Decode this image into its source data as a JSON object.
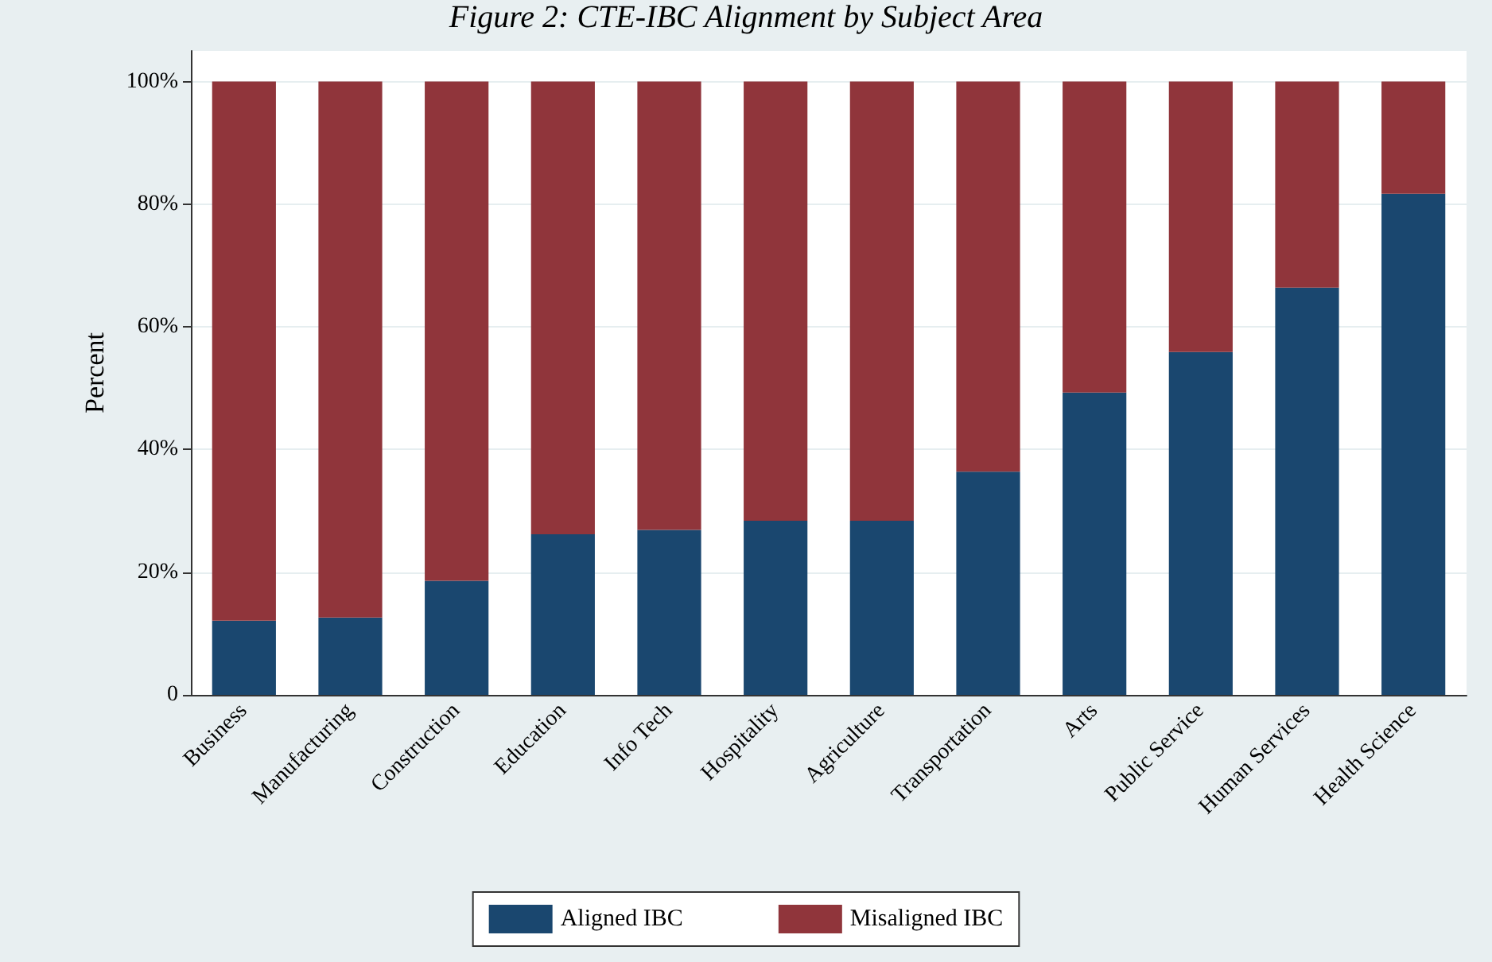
{
  "chart_data": {
    "type": "bar",
    "title": "Figure 2: CTE-IBC Alignment by Subject Area",
    "ylabel": "Percent",
    "categories": [
      "Business",
      "Manufacturing",
      "Construction",
      "Education",
      "Info Tech",
      "Hospitality",
      "Agriculture",
      "Transportation",
      "Arts",
      "Public Service",
      "Human Services",
      "Health Science"
    ],
    "series": [
      {
        "name": "Aligned IBC",
        "color": "#1a476f",
        "values": [
          12.1,
          12.6,
          18.6,
          26.2,
          26.9,
          28.4,
          28.4,
          36.4,
          49.3,
          55.9,
          66.4,
          81.7
        ]
      },
      {
        "name": "Misaligned IBC",
        "color": "#90353b",
        "values": [
          87.9,
          87.4,
          81.4,
          73.8,
          73.1,
          71.6,
          71.6,
          63.6,
          50.7,
          44.1,
          33.6,
          18.3
        ]
      }
    ],
    "stacked": true,
    "ylim": [
      0,
      105
    ],
    "yticks": [
      0,
      {
        "value": 20,
        "label": "20%"
      },
      {
        "value": 40,
        "label": "40%"
      },
      {
        "value": 60,
        "label": "60%"
      },
      {
        "value": 80,
        "label": "80%"
      },
      {
        "value": 100,
        "label": "100%"
      }
    ],
    "grid": "y",
    "legend": "bottom"
  }
}
